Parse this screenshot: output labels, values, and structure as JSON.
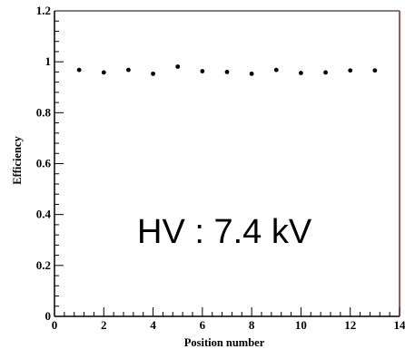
{
  "chart_data": {
    "type": "scatter",
    "xlabel": "Position number",
    "ylabel": "Efficiency",
    "xlim": [
      0,
      14
    ],
    "ylim": [
      0,
      1.2
    ],
    "x_ticks": [
      "0",
      "2",
      "4",
      "6",
      "8",
      "10",
      "12",
      "14"
    ],
    "y_ticks": [
      "0",
      "0.2",
      "0.4",
      "0.6",
      "0.8",
      "1",
      "1.2"
    ],
    "grid": false,
    "annotation": "HV : 7.4 kV",
    "series": [
      {
        "x": [
          1,
          2,
          3,
          4,
          5,
          6,
          7,
          8,
          9,
          10,
          11,
          12,
          13
        ],
        "y": [
          0.968,
          0.958,
          0.968,
          0.953,
          0.981,
          0.963,
          0.96,
          0.953,
          0.968,
          0.956,
          0.958,
          0.966,
          0.966
        ]
      }
    ]
  },
  "colors": {
    "frame": "#000000",
    "right_edge": "#8b2020",
    "marker": "#000000"
  }
}
